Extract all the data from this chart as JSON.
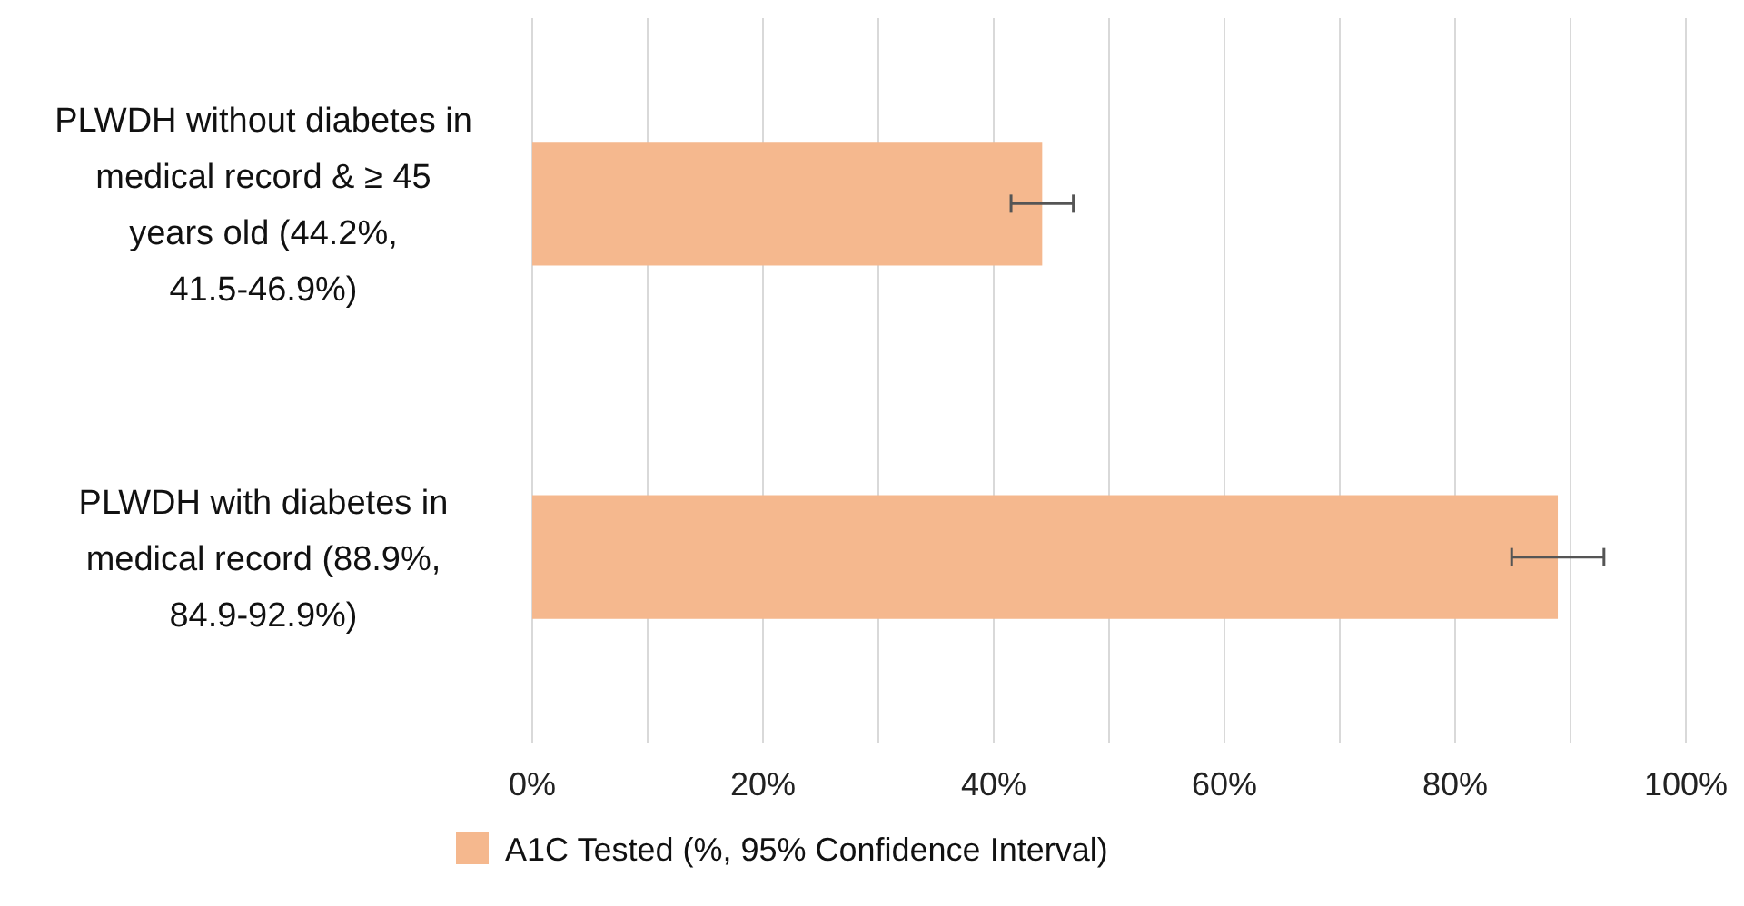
{
  "chart_data": {
    "type": "bar",
    "orientation": "horizontal",
    "categories": [
      "PLWDH without diabetes in medical record & ≥ 45 years old (44.2%, 41.5-46.9%)",
      "PLWDH with diabetes in medical record (88.9%, 84.9-92.9%)"
    ],
    "series": [
      {
        "name": "A1C Tested (%, 95% Confidence Interval)",
        "color": "#f5b88e",
        "values": [
          44.2,
          88.9
        ],
        "errors": [
          [
            41.5,
            46.9
          ],
          [
            84.9,
            92.9
          ]
        ]
      }
    ],
    "xlim": [
      0,
      100
    ],
    "xticks": [
      {
        "value": 0,
        "label": "0%"
      },
      {
        "value": 10,
        "label": null
      },
      {
        "value": 20,
        "label": "20%"
      },
      {
        "value": 30,
        "label": null
      },
      {
        "value": 40,
        "label": "40%"
      },
      {
        "value": 50,
        "label": null
      },
      {
        "value": 60,
        "label": "60%"
      },
      {
        "value": 70,
        "label": null
      },
      {
        "value": 80,
        "label": "80%"
      },
      {
        "value": 90,
        "label": null
      },
      {
        "value": 100,
        "label": "100%"
      }
    ],
    "grid": "x",
    "legend": "bottom"
  }
}
